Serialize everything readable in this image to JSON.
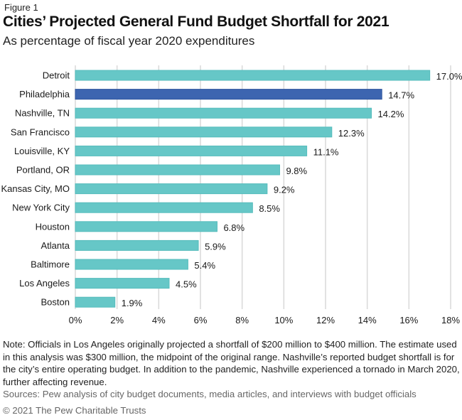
{
  "figure_label": "Figure 1",
  "title": "Cities’ Projected General Fund Budget Shortfall for 2021",
  "subtitle": "As percentage of fiscal year 2020 expenditures",
  "note": "Note: Officials in Los Angeles originally projected a shortfall of $200 million to $400 million. The estimate used in this analysis was $300 million, the midpoint of the original range. Nashville’s reported budget shortfall is for the city’s entire operating budget. In addition to the pandemic, Nashville experienced a tornado in March 2020, further affecting revenue.",
  "sources": "Sources: Pew analysis of city budget documents, media articles, and interviews with budget officials",
  "copyright": "© 2021 The Pew Charitable Trusts",
  "colors": {
    "default_bar": "#66C7C7",
    "highlight_bar": "#3D65B0",
    "grid": "#d9d9d9",
    "text": "#1a1a1a"
  },
  "chart_data": {
    "type": "bar",
    "orientation": "horizontal",
    "title": "Cities’ Projected General Fund Budget Shortfall for 2021",
    "subtitle": "As percentage of fiscal year 2020 expenditures",
    "xlabel": "",
    "ylabel": "",
    "categories": [
      "Detroit",
      "Philadelphia",
      "Nashville, TN",
      "San Francisco",
      "Louisville, KY",
      "Portland, OR",
      "Kansas City, MO",
      "New York City",
      "Houston",
      "Atlanta",
      "Baltimore",
      "Los Angeles",
      "Boston"
    ],
    "values": [
      17.0,
      14.7,
      14.2,
      12.3,
      11.1,
      9.8,
      9.2,
      8.5,
      6.8,
      5.9,
      5.4,
      4.5,
      1.9
    ],
    "value_labels": [
      "17.0%",
      "14.7%",
      "14.2%",
      "12.3%",
      "11.1%",
      "9.8%",
      "9.2%",
      "8.5%",
      "6.8%",
      "5.9%",
      "5.4%",
      "4.5%",
      "1.9%"
    ],
    "highlight": [
      "Philadelphia"
    ],
    "xlim": [
      0,
      18
    ],
    "xticks": [
      0,
      2,
      4,
      6,
      8,
      10,
      12,
      14,
      16,
      18
    ],
    "xtick_labels": [
      "0%",
      "2%",
      "4%",
      "6%",
      "8%",
      "10%",
      "12%",
      "14%",
      "16%",
      "18%"
    ],
    "grid": "vertical",
    "legend": "none"
  }
}
